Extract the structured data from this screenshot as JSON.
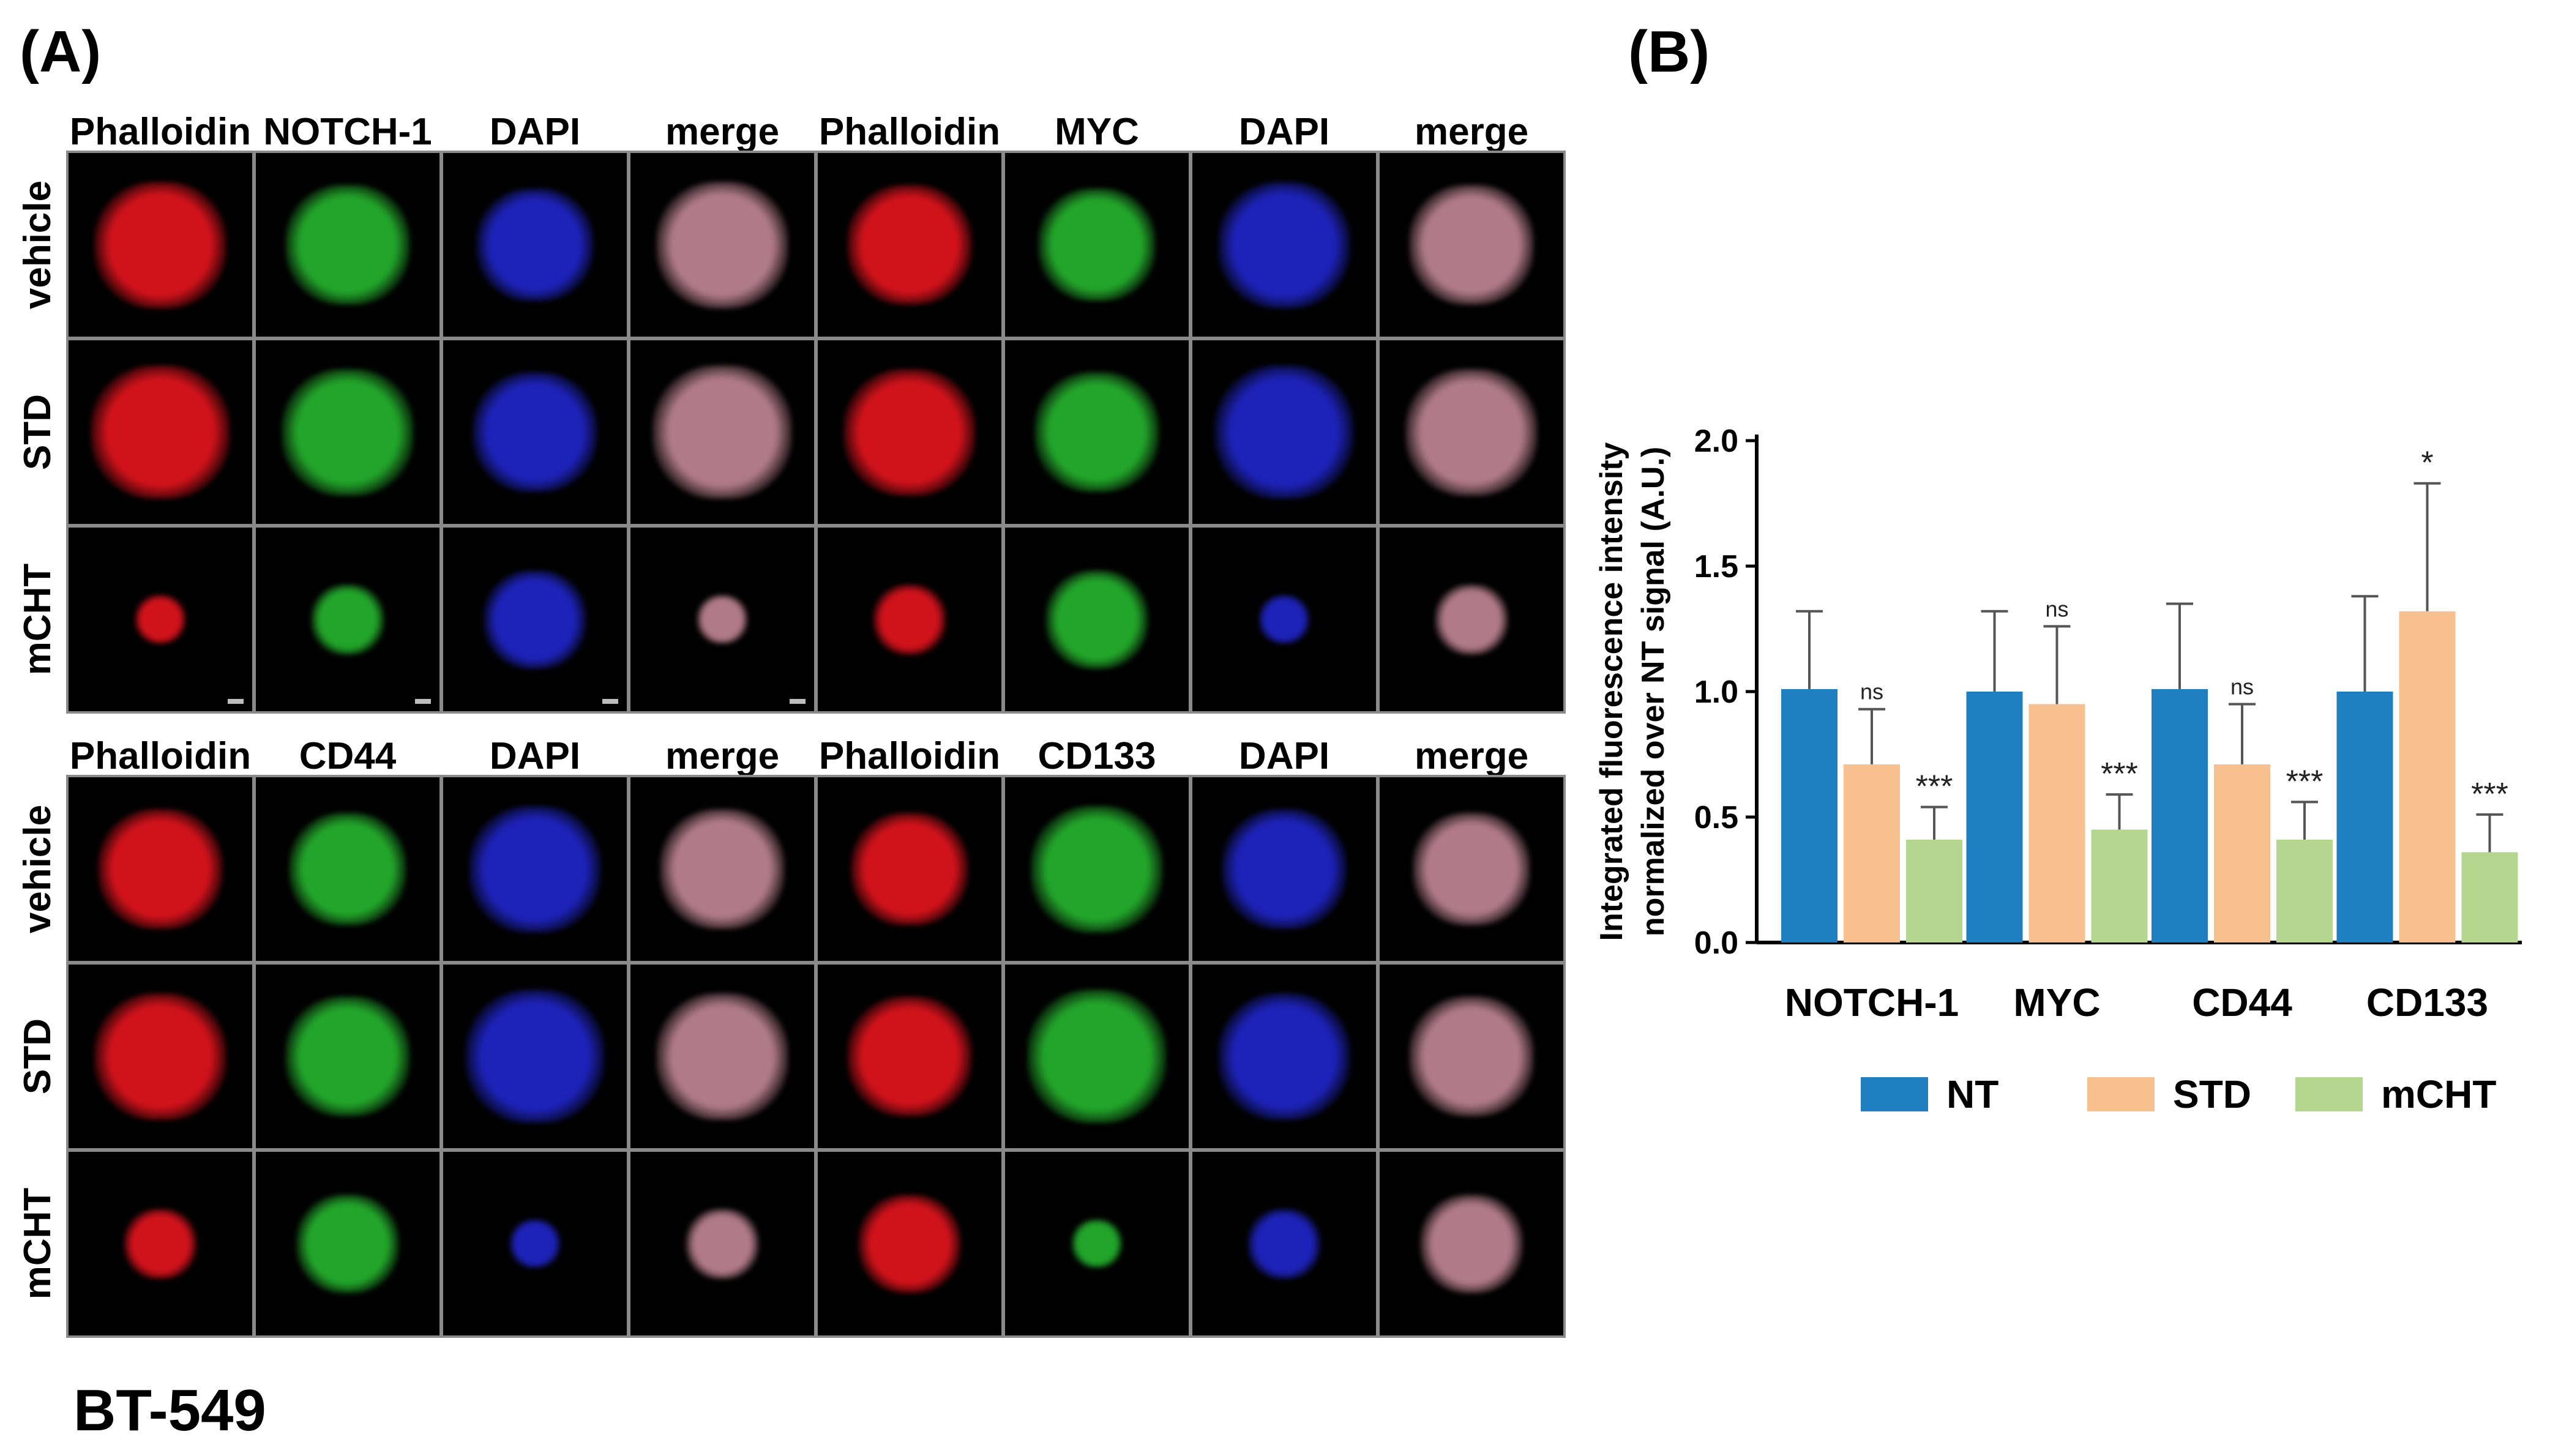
{
  "panel_a": {
    "letter": "(A)",
    "cell_line": "BT-549",
    "blocks": [
      {
        "columns": [
          "Phalloidin",
          "NOTCH-1",
          "DAPI",
          "merge",
          "Phalloidin",
          "MYC",
          "DAPI",
          "merge"
        ],
        "rows": [
          "vehicle",
          "STD",
          "mCHT"
        ]
      },
      {
        "columns": [
          "Phalloidin",
          "CD44",
          "DAPI",
          "merge",
          "Phalloidin",
          "CD133",
          "DAPI",
          "merge"
        ],
        "rows": [
          "vehicle",
          "STD",
          "mCHT"
        ]
      }
    ],
    "channel_colors": {
      "Phalloidin": "#d0121b",
      "NOTCH-1": "#22a52a",
      "MYC": "#22a52a",
      "CD44": "#22a52a",
      "CD133": "#22a52a",
      "DAPI": "#1d22b8",
      "merge": "#b07a8a"
    }
  },
  "panel_b": {
    "letter": "(B)",
    "chart_data": {
      "type": "bar",
      "ylabel": "Integrated fluorescence intensity\nnormalized over NT signal (A.U.)",
      "ylim": [
        0,
        20
      ],
      "yticks": [
        "0.0",
        "0.5",
        "1.0",
        "1.5",
        "2.0"
      ],
      "categories": [
        "NOTCH-1",
        "MYC",
        "CD44",
        "CD133"
      ],
      "legend_position": "bottom",
      "series": [
        {
          "name": "NT",
          "color": "#1f7fc1",
          "values": [
            10.1,
            10.0,
            10.1,
            10.0
          ],
          "errors": [
            3.1,
            3.2,
            3.4,
            3.8
          ]
        },
        {
          "name": "STD",
          "color": "#f8bf8f",
          "values": [
            7.1,
            9.5,
            7.1,
            13.2
          ],
          "errors": [
            2.2,
            3.1,
            2.4,
            5.1
          ]
        },
        {
          "name": "mCHT",
          "color": "#b5d68f",
          "values": [
            4.1,
            4.5,
            4.1,
            3.6
          ],
          "errors": [
            1.3,
            1.4,
            1.5,
            1.5
          ]
        }
      ],
      "annotations": [
        {
          "category": "NOTCH-1",
          "series": "STD",
          "text": "ns"
        },
        {
          "category": "NOTCH-1",
          "series": "mCHT",
          "text": "***"
        },
        {
          "category": "MYC",
          "series": "STD",
          "text": "ns"
        },
        {
          "category": "MYC",
          "series": "mCHT",
          "text": "***"
        },
        {
          "category": "CD44",
          "series": "STD",
          "text": "ns"
        },
        {
          "category": "CD44",
          "series": "mCHT",
          "text": "***"
        },
        {
          "category": "CD133",
          "series": "STD",
          "text": "*"
        },
        {
          "category": "CD133",
          "series": "mCHT",
          "text": "***"
        }
      ]
    }
  }
}
